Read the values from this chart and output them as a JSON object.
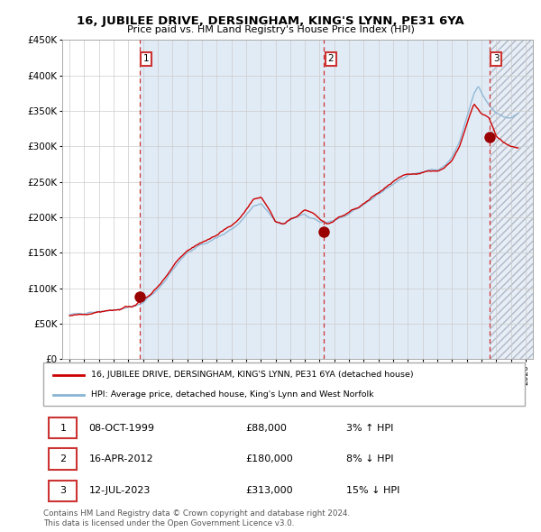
{
  "title": "16, JUBILEE DRIVE, DERSINGHAM, KING'S LYNN, PE31 6YA",
  "subtitle": "Price paid vs. HM Land Registry's House Price Index (HPI)",
  "legend_line1": "16, JUBILEE DRIVE, DERSINGHAM, KING'S LYNN, PE31 6YA (detached house)",
  "legend_line2": "HPI: Average price, detached house, King's Lynn and West Norfolk",
  "footer": "Contains HM Land Registry data © Crown copyright and database right 2024.\nThis data is licensed under the Open Government Licence v3.0.",
  "sale_markers": [
    {
      "num": 1,
      "year": 1999.77,
      "price": 88000,
      "label": "08-OCT-1999",
      "amount": "£88,000",
      "hpi_pct": "3% ↑ HPI"
    },
    {
      "num": 2,
      "year": 2012.29,
      "price": 180000,
      "label": "16-APR-2012",
      "amount": "£180,000",
      "hpi_pct": "8% ↓ HPI"
    },
    {
      "num": 3,
      "year": 2023.54,
      "price": 313000,
      "label": "12-JUL-2023",
      "amount": "£313,000",
      "hpi_pct": "15% ↓ HPI"
    }
  ],
  "hpi_color": "#8ab4d4",
  "price_color": "#cc0000",
  "sale_dot_color": "#990000",
  "vline_color": "#cc3333",
  "bg_shaded_color": "#dce8f5",
  "ylim": [
    0,
    450000
  ],
  "yticks": [
    0,
    50000,
    100000,
    150000,
    200000,
    250000,
    300000,
    350000,
    400000,
    450000
  ],
  "xlim_start": 1994.5,
  "xlim_end": 2026.5,
  "grid_color": "#cccccc",
  "hpi_anchors": [
    [
      1995.0,
      62000
    ],
    [
      1995.5,
      63000
    ],
    [
      1996.0,
      64500
    ],
    [
      1996.5,
      66000
    ],
    [
      1997.0,
      67500
    ],
    [
      1997.5,
      69000
    ],
    [
      1998.0,
      70500
    ],
    [
      1998.5,
      72000
    ],
    [
      1999.0,
      74000
    ],
    [
      1999.5,
      76000
    ],
    [
      2000.0,
      82000
    ],
    [
      2000.5,
      91000
    ],
    [
      2001.0,
      100000
    ],
    [
      2001.5,
      112000
    ],
    [
      2002.0,
      128000
    ],
    [
      2002.5,
      140000
    ],
    [
      2003.0,
      152000
    ],
    [
      2003.5,
      158000
    ],
    [
      2004.0,
      163000
    ],
    [
      2004.5,
      168000
    ],
    [
      2005.0,
      172000
    ],
    [
      2005.5,
      178000
    ],
    [
      2006.0,
      185000
    ],
    [
      2006.5,
      193000
    ],
    [
      2007.0,
      205000
    ],
    [
      2007.5,
      218000
    ],
    [
      2008.0,
      222000
    ],
    [
      2008.5,
      210000
    ],
    [
      2009.0,
      195000
    ],
    [
      2009.5,
      192000
    ],
    [
      2010.0,
      197000
    ],
    [
      2010.5,
      202000
    ],
    [
      2011.0,
      205000
    ],
    [
      2011.5,
      200000
    ],
    [
      2012.0,
      195000
    ],
    [
      2012.5,
      192000
    ],
    [
      2013.0,
      196000
    ],
    [
      2013.5,
      200000
    ],
    [
      2014.0,
      205000
    ],
    [
      2014.5,
      212000
    ],
    [
      2015.0,
      218000
    ],
    [
      2015.5,
      225000
    ],
    [
      2016.0,
      232000
    ],
    [
      2016.5,
      240000
    ],
    [
      2017.0,
      248000
    ],
    [
      2017.5,
      255000
    ],
    [
      2018.0,
      260000
    ],
    [
      2018.5,
      262000
    ],
    [
      2019.0,
      265000
    ],
    [
      2019.5,
      268000
    ],
    [
      2020.0,
      268000
    ],
    [
      2020.5,
      272000
    ],
    [
      2021.0,
      285000
    ],
    [
      2021.5,
      305000
    ],
    [
      2022.0,
      340000
    ],
    [
      2022.5,
      375000
    ],
    [
      2022.8,
      385000
    ],
    [
      2023.0,
      375000
    ],
    [
      2023.5,
      358000
    ],
    [
      2024.0,
      348000
    ],
    [
      2024.5,
      342000
    ],
    [
      2025.0,
      340000
    ],
    [
      2025.5,
      345000
    ]
  ],
  "price_anchors": [
    [
      1995.0,
      61000
    ],
    [
      1995.5,
      62000
    ],
    [
      1996.0,
      63500
    ],
    [
      1996.5,
      65000
    ],
    [
      1997.0,
      66500
    ],
    [
      1997.5,
      68000
    ],
    [
      1998.0,
      70000
    ],
    [
      1998.5,
      72000
    ],
    [
      1999.0,
      74000
    ],
    [
      1999.5,
      76000
    ],
    [
      2000.0,
      84000
    ],
    [
      2000.5,
      93000
    ],
    [
      2001.0,
      103000
    ],
    [
      2001.5,
      116000
    ],
    [
      2002.0,
      130000
    ],
    [
      2002.5,
      143000
    ],
    [
      2003.0,
      154000
    ],
    [
      2003.5,
      160000
    ],
    [
      2004.0,
      165000
    ],
    [
      2004.5,
      170000
    ],
    [
      2005.0,
      175000
    ],
    [
      2005.5,
      182000
    ],
    [
      2006.0,
      190000
    ],
    [
      2006.5,
      198000
    ],
    [
      2007.0,
      210000
    ],
    [
      2007.5,
      225000
    ],
    [
      2008.0,
      228000
    ],
    [
      2008.5,
      212000
    ],
    [
      2009.0,
      192000
    ],
    [
      2009.5,
      190000
    ],
    [
      2010.0,
      195000
    ],
    [
      2010.5,
      200000
    ],
    [
      2011.0,
      210000
    ],
    [
      2011.5,
      205000
    ],
    [
      2012.0,
      198000
    ],
    [
      2012.5,
      190000
    ],
    [
      2013.0,
      195000
    ],
    [
      2013.5,
      200000
    ],
    [
      2014.0,
      206000
    ],
    [
      2014.5,
      213000
    ],
    [
      2015.0,
      220000
    ],
    [
      2015.5,
      228000
    ],
    [
      2016.0,
      235000
    ],
    [
      2016.5,
      243000
    ],
    [
      2017.0,
      250000
    ],
    [
      2017.5,
      256000
    ],
    [
      2018.0,
      260000
    ],
    [
      2018.5,
      260000
    ],
    [
      2019.0,
      262000
    ],
    [
      2019.5,
      265000
    ],
    [
      2020.0,
      263000
    ],
    [
      2020.5,
      268000
    ],
    [
      2021.0,
      280000
    ],
    [
      2021.5,
      298000
    ],
    [
      2022.0,
      330000
    ],
    [
      2022.5,
      360000
    ],
    [
      2022.8,
      352000
    ],
    [
      2023.0,
      345000
    ],
    [
      2023.5,
      340000
    ],
    [
      2024.0,
      315000
    ],
    [
      2024.5,
      305000
    ],
    [
      2025.0,
      300000
    ],
    [
      2025.5,
      298000
    ]
  ]
}
